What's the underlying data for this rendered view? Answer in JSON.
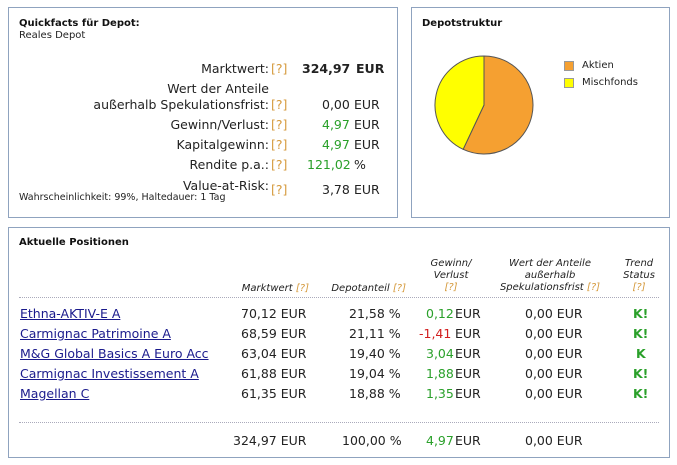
{
  "quickfacts": {
    "title": "Quickfacts für Depot:",
    "subtitle": "Reales Depot",
    "help": "[?]",
    "rows": [
      {
        "label": "Marktwert:",
        "value": "324,97",
        "unit": "EUR"
      },
      {
        "label": "Wert der Anteile",
        "value": "",
        "unit": ""
      },
      {
        "label": "außerhalb Spekulationsfrist:",
        "value": "0,00",
        "unit": "EUR"
      },
      {
        "label": "Gewinn/Verlust:",
        "value": "4,97",
        "unit": "EUR"
      },
      {
        "label": "Kapitalgewinn:",
        "value": "4,97",
        "unit": "EUR"
      },
      {
        "label": "Rendite p.a.:",
        "value": "121,02",
        "unit": "%"
      },
      {
        "label": "Value-at-Risk:",
        "value": "3,78",
        "unit": "EUR"
      }
    ],
    "var_note": "Wahrscheinlichkeit: 99%, Haltedauer: 1 Tag"
  },
  "depotstruktur": {
    "title": "Depotstruktur",
    "legend": [
      {
        "label": "Aktien",
        "color": "#f5a031"
      },
      {
        "label": "Mischfonds",
        "color": "#ffff00"
      }
    ]
  },
  "chart_data": {
    "type": "pie",
    "categories": [
      "Aktien",
      "Mischfonds"
    ],
    "values": [
      57,
      43
    ],
    "colors": [
      "#f5a031",
      "#ffff00"
    ]
  },
  "positions": {
    "title": "Aktuelle Positionen",
    "headers": {
      "marktwert": "Marktwert",
      "depotanteil": "Depotanteil",
      "gv1": "Gewinn/",
      "gv2": "Verlust",
      "wert1": "Wert der Anteile",
      "wert2": "außerhalb",
      "wert3": "Spekulationsfrist",
      "trend1": "Trend",
      "trend2": "Status",
      "help": "[?]"
    },
    "rows": [
      {
        "name": "Ethna-AKTIV-E A",
        "marktwert": "70,12 EUR",
        "anteil": "21,58 %",
        "gv": "0,12",
        "gv_unit": "EUR",
        "wert": "0,00 EUR",
        "trend": "K!",
        "gv_sign": "pos"
      },
      {
        "name": "Carmignac Patrimoine A",
        "marktwert": "68,59 EUR",
        "anteil": "21,11 %",
        "gv": "-1,41",
        "gv_unit": "EUR",
        "wert": "0,00 EUR",
        "trend": "K!",
        "gv_sign": "neg"
      },
      {
        "name": "M&G Global Basics A Euro Acc",
        "marktwert": "63,04 EUR",
        "anteil": "19,40 %",
        "gv": "3,04",
        "gv_unit": "EUR",
        "wert": "0,00 EUR",
        "trend": "K",
        "gv_sign": "pos"
      },
      {
        "name": "Carmignac Investissement A",
        "marktwert": "61,88 EUR",
        "anteil": "19,04 %",
        "gv": "1,88",
        "gv_unit": "EUR",
        "wert": "0,00 EUR",
        "trend": "K!",
        "gv_sign": "pos"
      },
      {
        "name": "Magellan C",
        "marktwert": "61,35 EUR",
        "anteil": "18,88 %",
        "gv": "1,35",
        "gv_unit": "EUR",
        "wert": "0,00 EUR",
        "trend": "K!",
        "gv_sign": "pos"
      }
    ],
    "totals": {
      "marktwert": "324,97 EUR",
      "anteil": "100,00 %",
      "gv": "4,97",
      "gv_unit": "EUR",
      "wert": "0,00 EUR"
    }
  }
}
